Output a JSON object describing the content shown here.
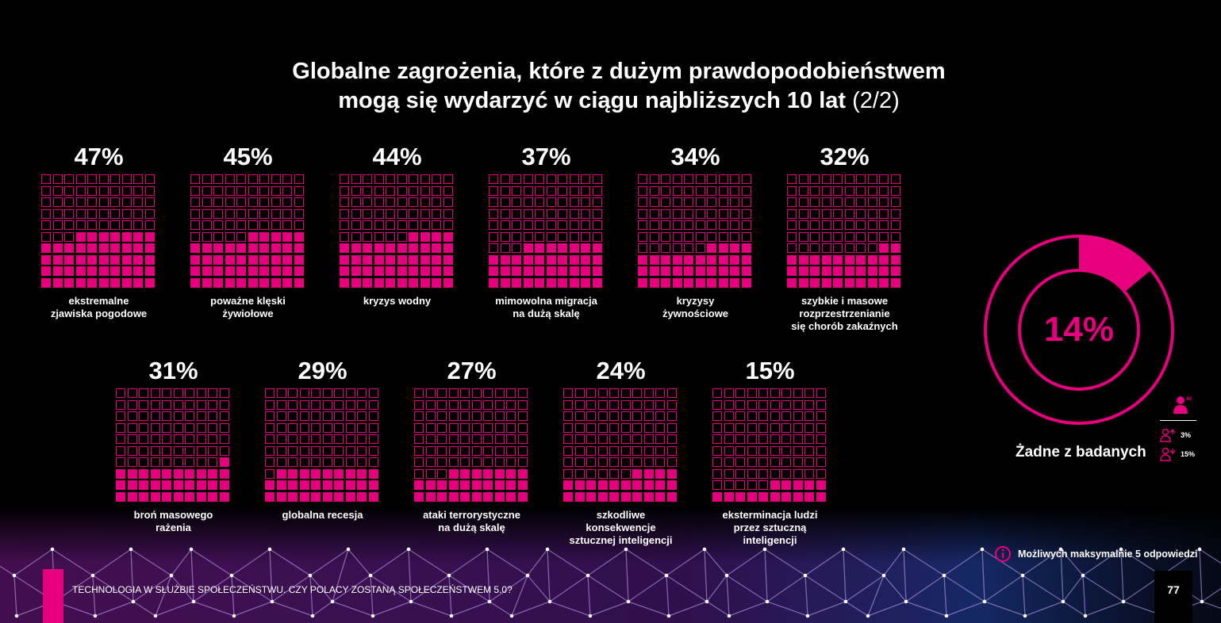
{
  "title": {
    "line1": "Globalne zagrożenia, które z dużym prawdopodobieństwem",
    "line2": "mogą się wydarzyć w ciągu najbliższych 10 lat",
    "part": "(2/2)"
  },
  "colors": {
    "accent": "#e6007e",
    "background": "#000000",
    "text": "#ffffff"
  },
  "chart_data": {
    "type": "waffle",
    "unit": "%",
    "grid": "10x10",
    "items": [
      {
        "label": "ekstremalne zjawiska pogodowe",
        "value": 47
      },
      {
        "label": "poważne klęski żywiołowe",
        "value": 45
      },
      {
        "label": "kryzys wodny",
        "value": 44
      },
      {
        "label": "mimowolna migracja na dużą skalę",
        "value": 37
      },
      {
        "label": "kryzysy żywnościowe",
        "value": 34
      },
      {
        "label": "szybkie i masowe rozprzestrzenianie się chorób zakaźnych",
        "value": 32
      },
      {
        "label": "broń masowego rażenia",
        "value": 31
      },
      {
        "label": "globalna recesja",
        "value": 29
      },
      {
        "label": "ataki terrorystyczne na dużą skalę",
        "value": 27
      },
      {
        "label": "szkodliwe konsekwencje sztucznej inteligencji",
        "value": 24
      },
      {
        "label": "eksterminacja ludzi przez sztuczną inteligencji",
        "value": 15
      }
    ],
    "donut": {
      "label": "Żadne z badanych",
      "value": 14
    }
  },
  "waffles": [
    {
      "pct": "47%",
      "label": "ekstremalne\nzjawiska pogodowe"
    },
    {
      "pct": "45%",
      "label": "poważne klęski\nżywiołowe"
    },
    {
      "pct": "44%",
      "label": "kryzys wodny"
    },
    {
      "pct": "37%",
      "label": "mimowolna migracja\nna dużą skalę"
    },
    {
      "pct": "34%",
      "label": "kryzysy\nżywnościowe"
    },
    {
      "pct": "32%",
      "label": "szybkie i masowe\nrozprzestrzenianie\nsię chorób zakaźnych"
    },
    {
      "pct": "31%",
      "label": "broń masowego\nrażenia"
    },
    {
      "pct": "29%",
      "label": "globalna recesja"
    },
    {
      "pct": "27%",
      "label": "ataki terrorystyczne\nna dużą skalę"
    },
    {
      "pct": "24%",
      "label": "szkodliwe\nkonsekwencje\nsztucznej inteligencji"
    },
    {
      "pct": "15%",
      "label": "eksterminacja ludzi\nprzez sztuczną\ninteligencji"
    }
  ],
  "donut": {
    "value_text": "14%",
    "label": "Żadne z badanych"
  },
  "legend": {
    "ai_label": "AI",
    "icons": [
      "user-ai-icon",
      "user-up-icon",
      "user-down-icon"
    ],
    "rows": [
      {
        "value": "3%"
      },
      {
        "value": "15%"
      }
    ]
  },
  "note": {
    "icon": "info-icon",
    "text": "Możliwych maksymalnie 5 odpowiedzi"
  },
  "footer": {
    "text": "TECHNOLOGIA W SŁUŻBIE SPOŁECZEŃSTWU. CZY POLACY ZOSTANĄ SPOŁECZEŃSTWEM 5.0?",
    "page": "77"
  }
}
